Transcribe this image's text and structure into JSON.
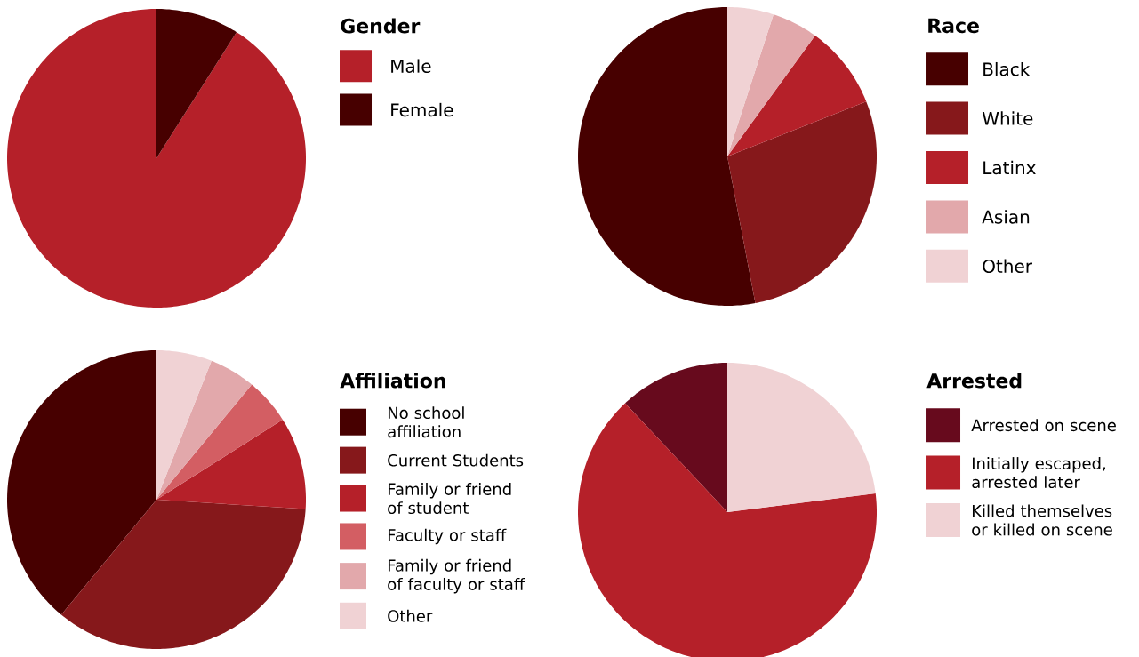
{
  "chart_data": [
    {
      "type": "pie",
      "title": "Gender",
      "categories": [
        "Male",
        "Female"
      ],
      "values": [
        91,
        9
      ],
      "colors": [
        "#b52029",
        "#470000"
      ],
      "legend": "right"
    },
    {
      "type": "pie",
      "title": "Race",
      "categories": [
        "Black",
        "White",
        "Latinx",
        "Asian",
        "Other"
      ],
      "values": [
        53,
        28,
        9,
        5,
        5
      ],
      "colors": [
        "#470000",
        "#86181b",
        "#b52029",
        "#e2a8ab",
        "#f0d2d4"
      ],
      "legend": "right"
    },
    {
      "type": "pie",
      "title": "Affiliation",
      "categories": [
        "No school affiliation",
        "Current Students",
        "Family or friend of student",
        "Faculty or staff",
        "Family or friend of faculty or staff",
        "Other"
      ],
      "values": [
        39,
        35,
        10,
        5,
        5,
        6
      ],
      "colors": [
        "#470000",
        "#86181b",
        "#b52029",
        "#d35e63",
        "#e2a8ab",
        "#f0d2d4"
      ],
      "legend": "right"
    },
    {
      "type": "pie",
      "title": "Arrested",
      "categories": [
        "Arrested on scene",
        "Initially escaped, arrested later",
        "Killed themselves or killed on scene"
      ],
      "values": [
        12,
        65,
        23
      ],
      "colors": [
        "#670a1d",
        "#b52029",
        "#f0d2d4"
      ],
      "legend": "right"
    }
  ]
}
